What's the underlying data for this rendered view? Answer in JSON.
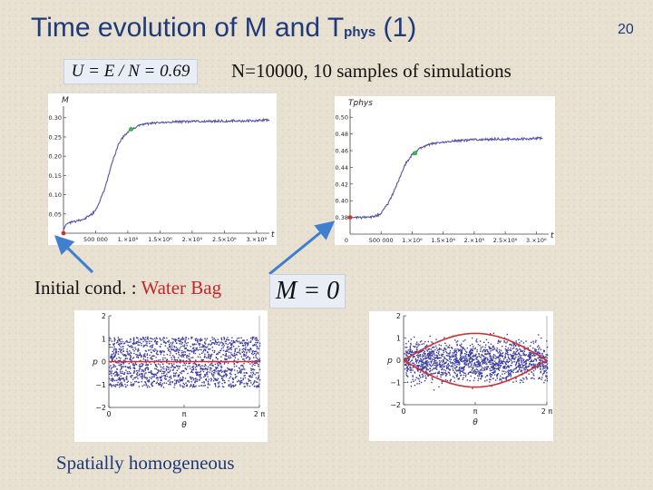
{
  "slide": {
    "title_main": "Time evolution of M and T",
    "title_sub": "phys",
    "title_suffix": " (1)",
    "page_number": "20",
    "u_formula": "U = E / N = 0.69",
    "sim_info": "N=10000, 10 samples of simulations",
    "initial_label_prefix": "Initial cond. : ",
    "initial_label_highlight": "Water Bag",
    "m_formula": "M = 0",
    "caption": "Spatially homogeneous",
    "arrow_color": "#3f7fd0",
    "highlight_color": "#c0282e"
  },
  "chart_data": [
    {
      "type": "line",
      "ylabel": "M",
      "xlabel": "t",
      "xlim": [
        0,
        3200000.0
      ],
      "ylim": [
        0.0,
        0.33
      ],
      "x_ticks": [
        "500 000",
        "1.×10⁶",
        "1.5×10⁶",
        "2.×10⁶",
        "2.5×10⁶",
        "3.×10⁶"
      ],
      "y_ticks": [
        "0.05",
        "0.10",
        "0.15",
        "0.20",
        "0.25",
        "0.30"
      ],
      "color": "#5552a8",
      "markers": [
        {
          "x": 0,
          "y": 0.0,
          "color": "#d03030"
        },
        {
          "x": 1050000.0,
          "y": 0.27,
          "color": "#38b848"
        }
      ],
      "series": [
        {
          "x": [
            0,
            50000,
            150000,
            300000,
            450000,
            550000,
            650000,
            750000,
            850000,
            950000,
            1050000,
            1200000,
            1400000,
            1700000,
            2000000,
            2300000,
            2600000,
            2900000,
            3200000
          ],
          "y": [
            0.01,
            0.025,
            0.03,
            0.035,
            0.05,
            0.075,
            0.12,
            0.18,
            0.23,
            0.255,
            0.27,
            0.282,
            0.286,
            0.289,
            0.29,
            0.291,
            0.292,
            0.292,
            0.294
          ]
        }
      ]
    },
    {
      "type": "line",
      "ylabel": "T_phys",
      "xlabel": "t",
      "xlim": [
        0,
        3200000.0
      ],
      "ylim": [
        0.36,
        0.51
      ],
      "x_ticks": [
        "500 000",
        "1.×10⁶",
        "1.5×10⁶",
        "2.×10⁶",
        "2.5×10⁶",
        "3.×10⁶"
      ],
      "y_ticks": [
        "0.38",
        "0.40",
        "0.42",
        "0.44",
        "0.46",
        "0.48",
        "0.50"
      ],
      "color": "#5552a8",
      "markers": [
        {
          "x": 0,
          "y": 0.38,
          "color": "#d03030"
        },
        {
          "x": 1050000.0,
          "y": 0.457,
          "color": "#38b848"
        }
      ],
      "series": [
        {
          "x": [
            0,
            200000,
            400000,
            500000,
            600000,
            700000,
            800000,
            900000,
            1000000,
            1100000,
            1300000,
            1600000,
            2000000,
            2400000,
            2800000,
            3100000
          ],
          "y": [
            0.38,
            0.38,
            0.381,
            0.385,
            0.395,
            0.41,
            0.428,
            0.445,
            0.455,
            0.462,
            0.468,
            0.471,
            0.473,
            0.474,
            0.474,
            0.475
          ]
        }
      ]
    },
    {
      "type": "scatter",
      "xlabel": "θ",
      "ylabel": "p",
      "xlim": [
        0,
        6.2832
      ],
      "ylim": [
        -2,
        2
      ],
      "x_ticks": [
        "0",
        "π",
        "2 π"
      ],
      "y_ticks": [
        "−2",
        "−1",
        "0",
        "1",
        "2"
      ],
      "color": "#3c3ca0",
      "band": [
        -1.1,
        1.1
      ],
      "curves": [
        {
          "name": "separatrix",
          "color": "#d03030",
          "amplitude": 0.0
        }
      ]
    },
    {
      "type": "scatter",
      "xlabel": "θ",
      "ylabel": "p",
      "xlim": [
        0,
        6.2832
      ],
      "ylim": [
        -2,
        2
      ],
      "x_ticks": [
        "0",
        "π",
        "2 π"
      ],
      "y_ticks": [
        "−2",
        "−1",
        "0",
        "1",
        "2"
      ],
      "color": "#3c3ca0",
      "band": [
        -1.3,
        1.3
      ],
      "curves": [
        {
          "name": "separatrix",
          "color": "#d03030",
          "amplitude": 1.05
        }
      ]
    }
  ]
}
